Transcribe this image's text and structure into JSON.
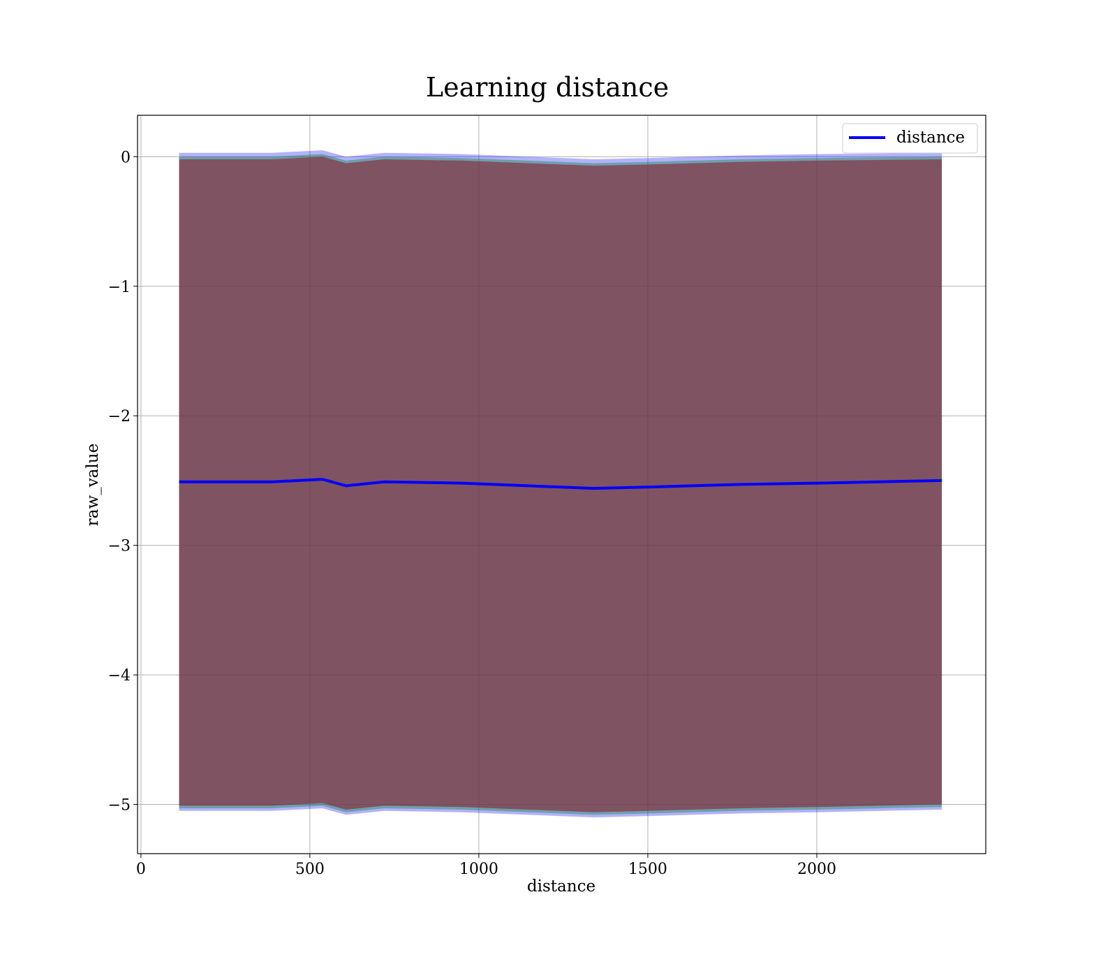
{
  "chart_data": {
    "type": "line",
    "title": "Learning distance",
    "xlabel": "distance",
    "ylabel": "raw_value",
    "xlim": [
      -10,
      2500
    ],
    "ylim": [
      -5.38,
      0.32
    ],
    "xticks": [
      0,
      500,
      1000,
      1500,
      2000
    ],
    "xtick_labels": [
      "0",
      "500",
      "1000",
      "1500",
      "2000"
    ],
    "yticks": [
      0,
      -1,
      -2,
      -3,
      -4,
      -5
    ],
    "ytick_labels": [
      "0",
      "−1",
      "−2",
      "−3",
      "−4",
      "−5"
    ],
    "grid": true,
    "legend_position": "upper right",
    "legend": [
      "distance"
    ],
    "x": [
      113,
      388,
      537,
      607,
      720,
      950,
      1340,
      1500,
      1770,
      2000,
      2370
    ],
    "series": [
      {
        "name": "distance",
        "color": "#0000ff",
        "values": [
          -2.51,
          -2.51,
          -2.49,
          -2.54,
          -2.51,
          -2.52,
          -2.56,
          -2.55,
          -2.53,
          -2.52,
          -2.5
        ]
      }
    ],
    "bands": [
      {
        "role": "outer",
        "color": "#0000ff",
        "opacity": 0.3,
        "upper": [
          0.03,
          0.03,
          0.05,
          0.0,
          0.03,
          0.02,
          -0.02,
          -0.01,
          0.01,
          0.02,
          0.03
        ],
        "lower": [
          -5.05,
          -5.05,
          -5.03,
          -5.08,
          -5.05,
          -5.06,
          -5.1,
          -5.09,
          -5.07,
          -5.06,
          -5.04
        ]
      },
      {
        "role": "middle",
        "color": "#2e8b57",
        "opacity": 0.5,
        "upper": [
          0.0,
          0.0,
          0.02,
          -0.03,
          0.0,
          -0.01,
          -0.05,
          -0.04,
          -0.02,
          -0.01,
          0.0
        ],
        "lower": [
          -5.03,
          -5.03,
          -5.01,
          -5.06,
          -5.03,
          -5.04,
          -5.08,
          -5.07,
          -5.05,
          -5.04,
          -5.02
        ]
      },
      {
        "role": "inner",
        "color": "#8b2232",
        "opacity": 0.6,
        "upper": [
          -0.02,
          -0.02,
          0.0,
          -0.05,
          -0.02,
          -0.03,
          -0.07,
          -0.06,
          -0.04,
          -0.03,
          -0.02
        ],
        "lower": [
          -5.01,
          -5.01,
          -4.99,
          -5.04,
          -5.01,
          -5.02,
          -5.06,
          -5.05,
          -5.03,
          -5.02,
          -5.0
        ]
      }
    ]
  }
}
